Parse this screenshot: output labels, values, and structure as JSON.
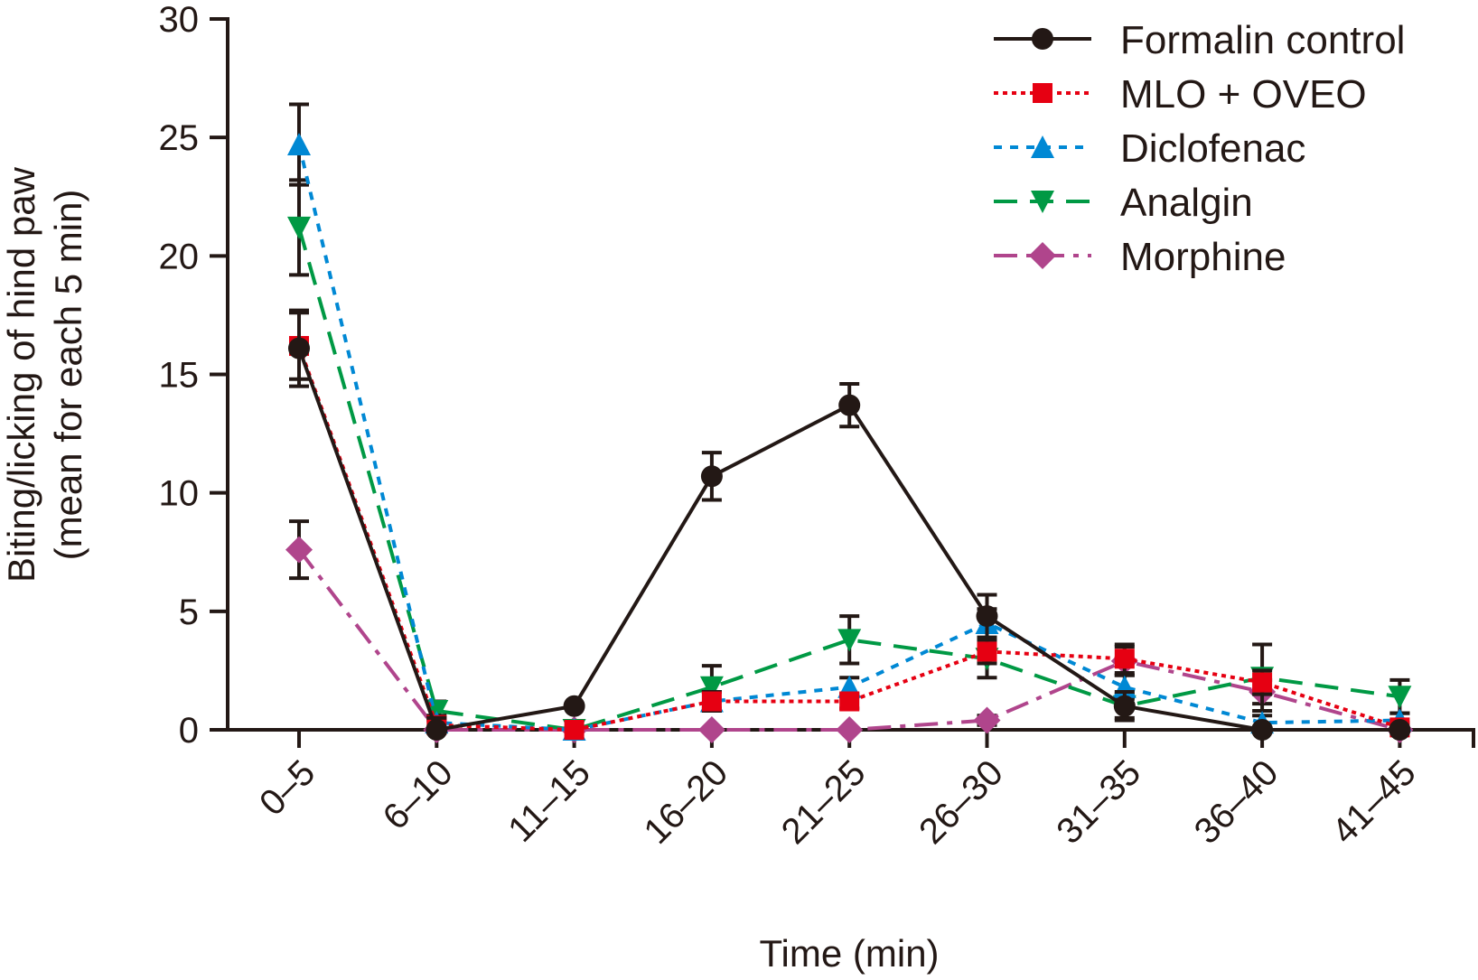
{
  "chart_data": {
    "type": "line",
    "title": "",
    "xlabel": "Time (min)",
    "ylabel": [
      "Biting/licking of hind paw",
      "(mean for each 5 min)"
    ],
    "categories": [
      "0–5",
      "6–10",
      "11–15",
      "16–20",
      "21–25",
      "26–30",
      "31–35",
      "36–40",
      "41–45"
    ],
    "ylim": [
      0,
      30
    ],
    "yticks": [
      0,
      5,
      10,
      15,
      20,
      25,
      30
    ],
    "grid": false,
    "legend_position": "top-right",
    "series": [
      {
        "name": "Formalin control",
        "color": "#231815",
        "marker": "circle",
        "line_style": "solid",
        "values": [
          16.1,
          0,
          1.0,
          10.7,
          13.7,
          4.8,
          1.0,
          0,
          0
        ],
        "errors": [
          1.6,
          0.5,
          0,
          1.0,
          0.9,
          0.9,
          0.6,
          0,
          0
        ]
      },
      {
        "name": "MLO + OVEO",
        "color": "#e60012",
        "marker": "square",
        "line_style": "dotted",
        "values": [
          16.2,
          0.2,
          0,
          1.2,
          1.2,
          3.3,
          3.0,
          2.0,
          0.1
        ],
        "errors": [
          1.4,
          0.3,
          0,
          0.4,
          0.3,
          0.5,
          0.6,
          0.5,
          0.2
        ]
      },
      {
        "name": "Diclofenac",
        "color": "#0088d4",
        "marker": "triangle-up",
        "line_style": "short-dash",
        "values": [
          24.7,
          0.3,
          0,
          1.2,
          1.8,
          4.5,
          1.8,
          0.3,
          0.4
        ],
        "errors": [
          1.7,
          0.3,
          0,
          0.4,
          0.4,
          0.6,
          0.5,
          0.3,
          0.3
        ]
      },
      {
        "name": "Analgin",
        "color": "#009944",
        "marker": "triangle-down",
        "line_style": "long-dash",
        "values": [
          21.2,
          0.8,
          0,
          1.8,
          3.8,
          3.0,
          1.0,
          2.2,
          1.4
        ],
        "errors": [
          2.0,
          0.4,
          0,
          0.9,
          1.0,
          0.8,
          0.5,
          1.4,
          0.7
        ]
      },
      {
        "name": "Morphine",
        "color": "#b0458c",
        "marker": "diamond",
        "line_style": "dash-dot",
        "values": [
          7.6,
          0,
          0,
          0,
          0,
          0.4,
          2.9,
          1.6,
          0
        ],
        "errors": [
          1.2,
          0,
          0,
          0,
          0,
          0.2,
          0.6,
          0.5,
          0
        ]
      }
    ]
  }
}
